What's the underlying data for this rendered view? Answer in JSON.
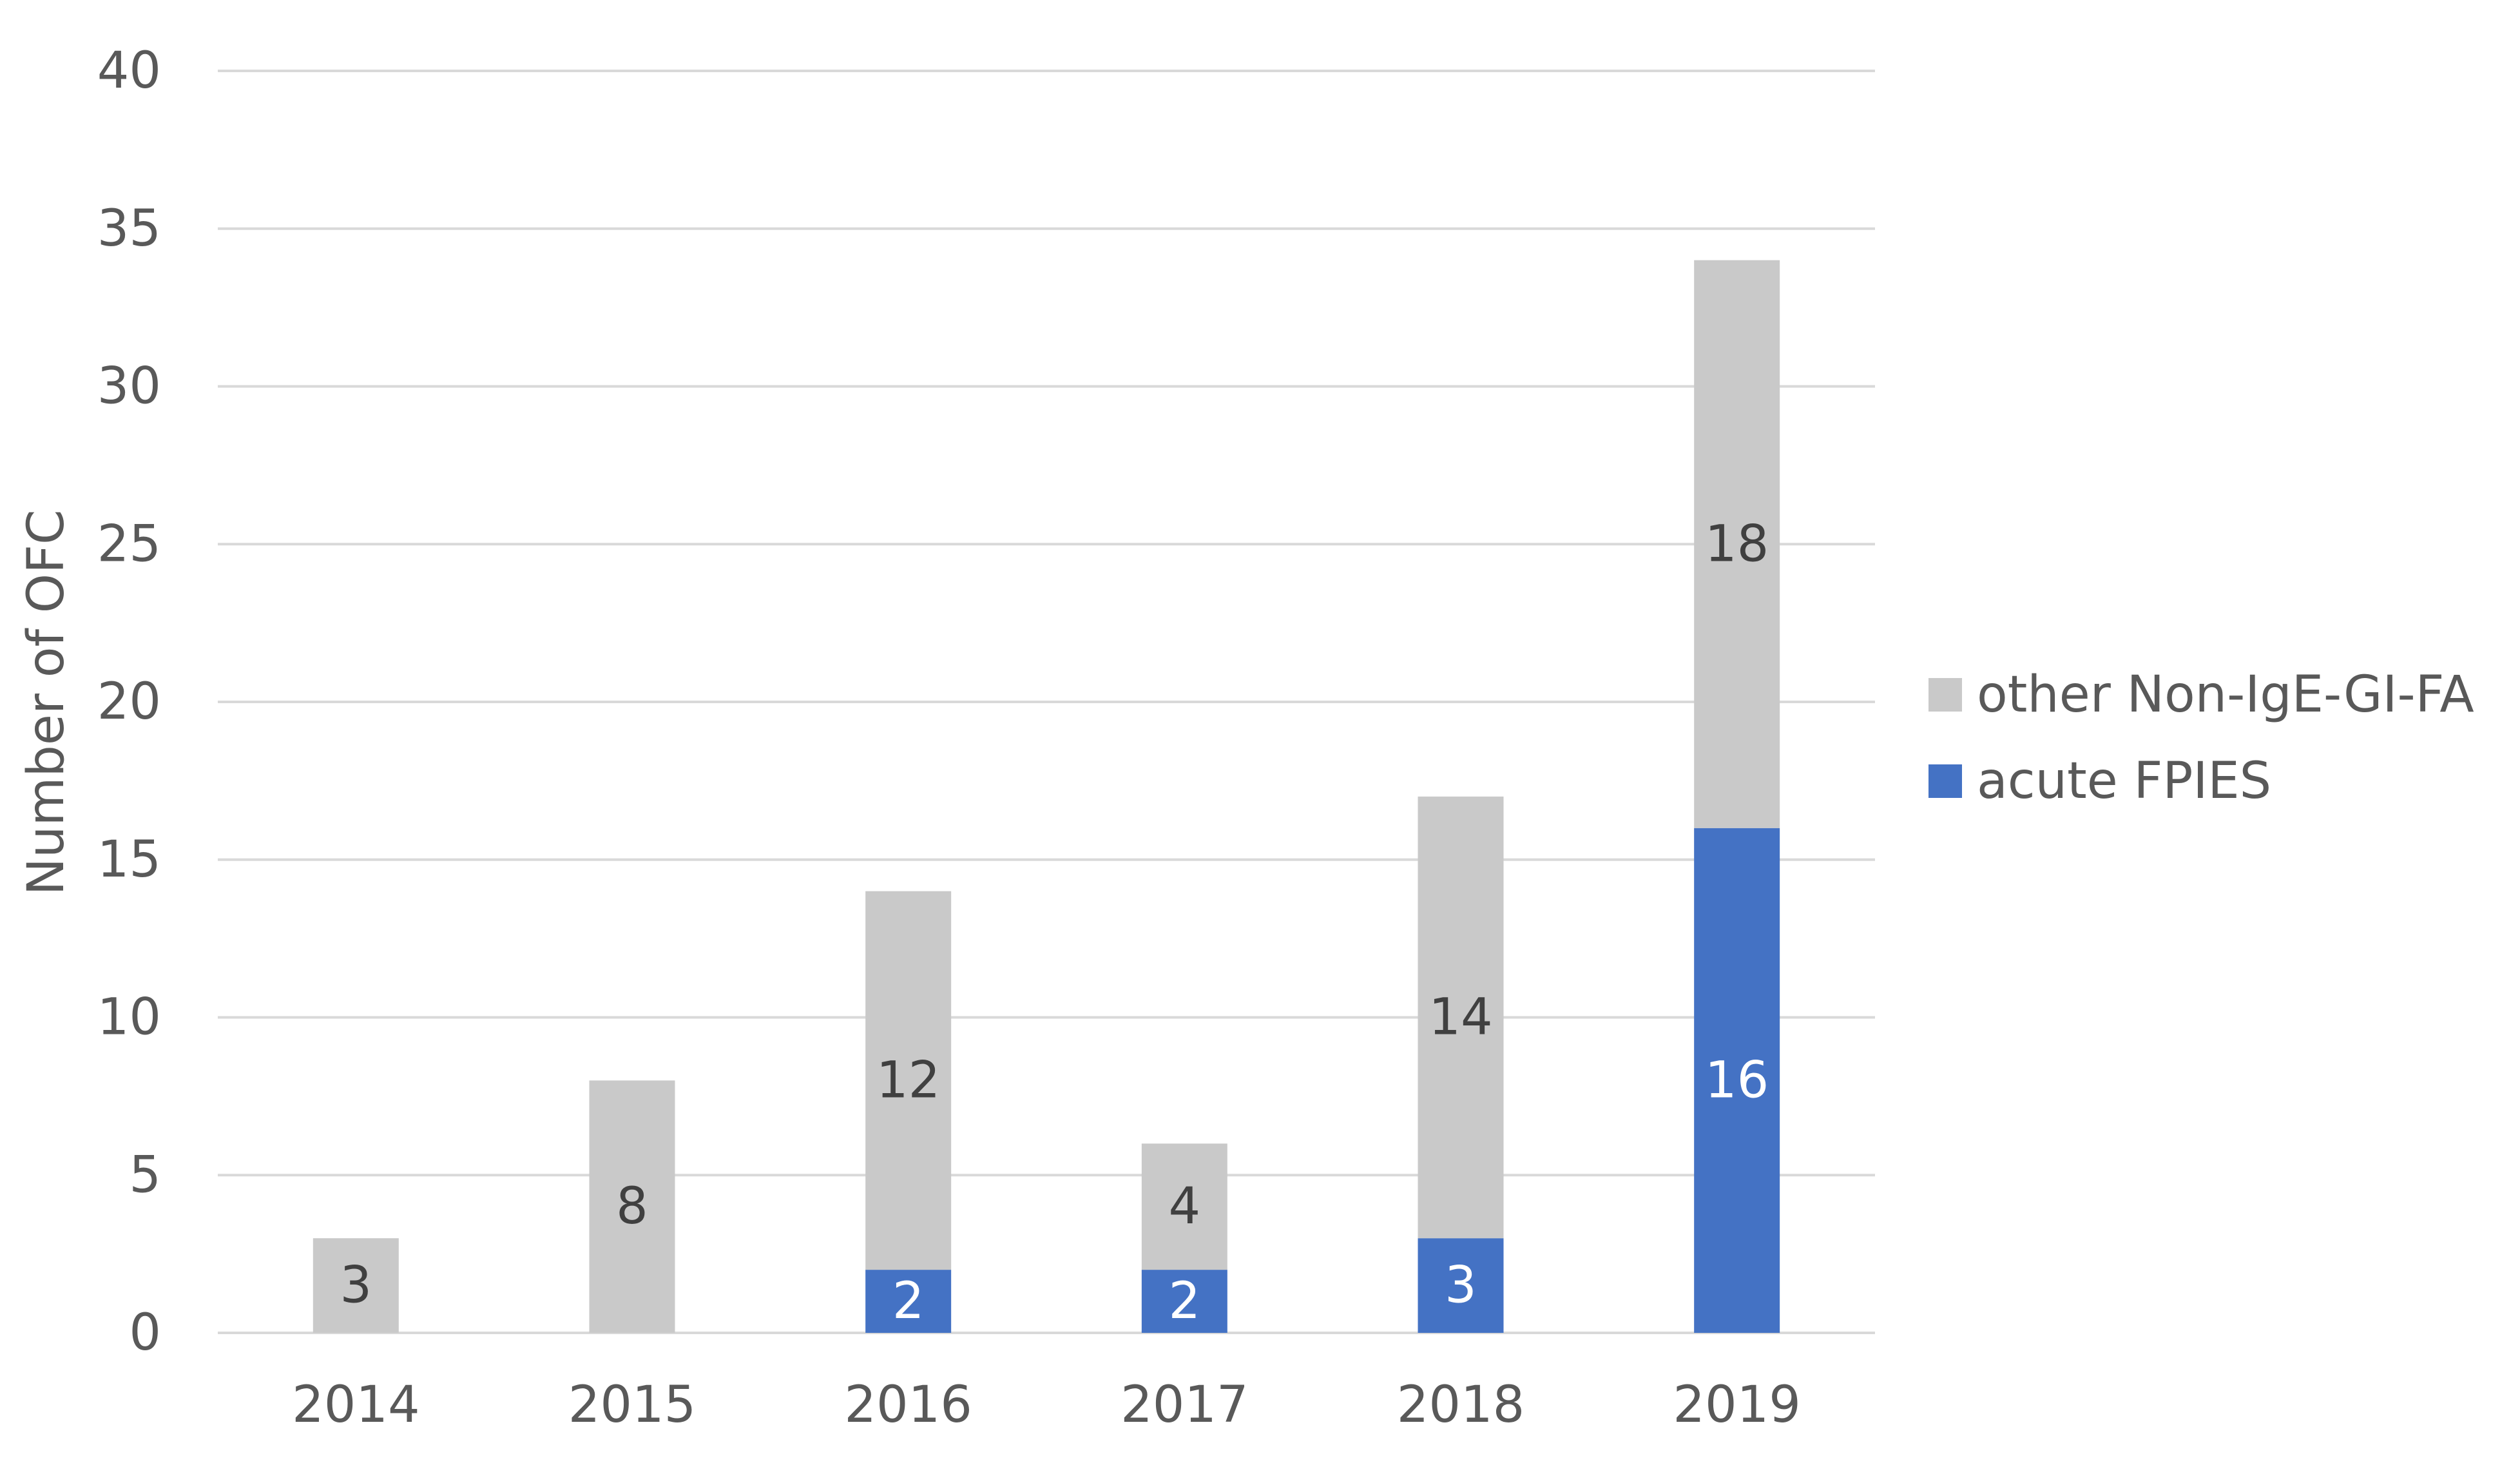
{
  "chart_data": {
    "type": "bar",
    "stacked": true,
    "title": "",
    "xlabel": "",
    "ylabel": "Number of OFC",
    "categories": [
      "2014",
      "2015",
      "2016",
      "2017",
      "2018",
      "2019"
    ],
    "series": [
      {
        "name": "acute FPIES",
        "color": "#4472C4",
        "values": [
          0,
          0,
          2,
          2,
          3,
          16
        ],
        "labels": [
          "",
          "",
          "2",
          "2",
          "3",
          "16"
        ],
        "label_color": "#ffffff"
      },
      {
        "name": "other Non-IgE-GI-FA",
        "color": "#C9C9C9",
        "values": [
          3,
          8,
          12,
          4,
          14,
          18
        ],
        "labels": [
          "3",
          "8",
          "12",
          "4",
          "14",
          "18"
        ],
        "label_color": "#404040"
      }
    ],
    "ylim": [
      0,
      40
    ],
    "yticks": [
      "0",
      "5",
      "10",
      "15",
      "20",
      "25",
      "30",
      "35",
      "40"
    ],
    "grid": true,
    "gridline_color": "#D9D9D9",
    "tick_label_color": "#595959",
    "legend": {
      "position": "right",
      "items": [
        "other Non-IgE-GI-FA",
        "acute FPIES"
      ]
    }
  }
}
